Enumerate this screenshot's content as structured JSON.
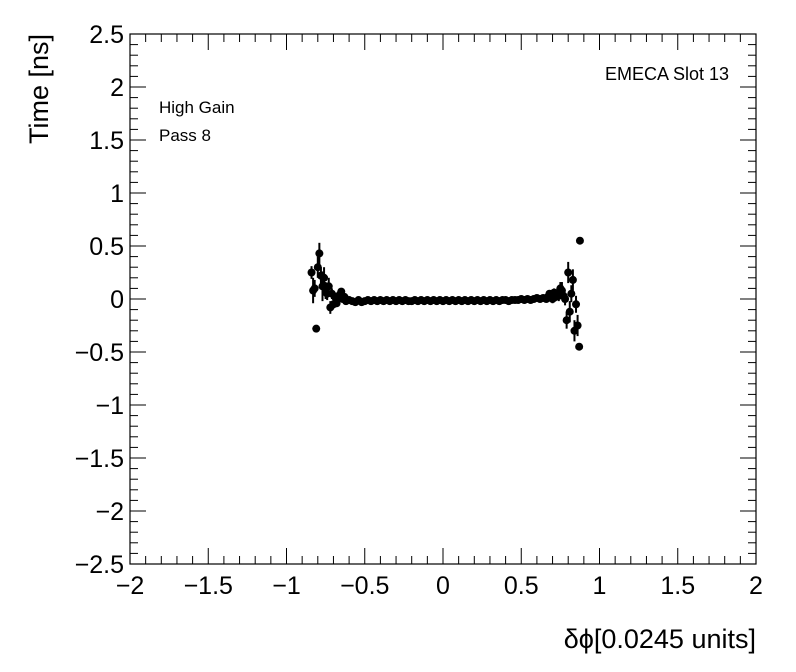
{
  "chart_data": {
    "type": "scatter",
    "title": "",
    "xlabel": "δϕ[0.0245 units]",
    "ylabel": "Time [ns]",
    "xlim": [
      -2,
      2
    ],
    "ylim": [
      -2.5,
      2.5
    ],
    "x_ticks": [
      -2,
      -1.5,
      -1,
      -0.5,
      0,
      0.5,
      1,
      1.5,
      2
    ],
    "x_tick_labels": [
      "−2",
      "−1.5",
      "−1",
      "−0.5",
      "0",
      "0.5",
      "1",
      "1.5",
      "2"
    ],
    "y_ticks": [
      -2.5,
      -2,
      -1.5,
      -1,
      -0.5,
      0,
      0.5,
      1,
      1.5,
      2,
      2.5
    ],
    "y_tick_labels": [
      "−2.5",
      "−2",
      "−1.5",
      "−1",
      "−0.5",
      "0",
      "0.5",
      "1",
      "1.5",
      "2",
      "2.5"
    ],
    "grid": false,
    "legend": "none",
    "marker_color": "#000000",
    "annotations": {
      "left_line1": "High Gain",
      "left_line2": "Pass 8",
      "right": "EMECA Slot 13"
    },
    "series": [
      {
        "points": [
          {
            "x": -0.84,
            "y": 0.25,
            "err": 0.06
          },
          {
            "x": -0.83,
            "y": 0.08,
            "err": 0.12
          },
          {
            "x": -0.82,
            "y": 0.1,
            "err": 0.08
          },
          {
            "x": -0.81,
            "y": -0.28,
            "err": 0.03
          },
          {
            "x": -0.8,
            "y": 0.3,
            "err": 0.1
          },
          {
            "x": -0.79,
            "y": 0.43,
            "err": 0.1
          },
          {
            "x": -0.78,
            "y": 0.22,
            "err": 0.08
          },
          {
            "x": -0.77,
            "y": 0.12,
            "err": 0.14
          },
          {
            "x": -0.76,
            "y": 0.2,
            "err": 0.1
          },
          {
            "x": -0.75,
            "y": 0.08,
            "err": 0.08
          },
          {
            "x": -0.74,
            "y": 0.05,
            "err": 0.06
          },
          {
            "x": -0.73,
            "y": 0.12,
            "err": 0.08
          },
          {
            "x": -0.72,
            "y": -0.08,
            "err": 0.06
          },
          {
            "x": -0.71,
            "y": 0.05,
            "err": 0.05
          },
          {
            "x": -0.7,
            "y": -0.05,
            "err": 0.04
          },
          {
            "x": -0.69,
            "y": 0.02,
            "err": 0.04
          },
          {
            "x": -0.68,
            "y": -0.04,
            "err": 0.03
          },
          {
            "x": -0.67,
            "y": 0.0,
            "err": 0.03
          },
          {
            "x": -0.66,
            "y": 0.04,
            "err": 0.03
          },
          {
            "x": -0.65,
            "y": 0.07,
            "err": 0.03
          },
          {
            "x": -0.64,
            "y": 0.0,
            "err": 0.02
          },
          {
            "x": -0.63,
            "y": 0.02,
            "err": 0.02
          },
          {
            "x": -0.62,
            "y": -0.02,
            "err": 0.02
          },
          {
            "x": -0.6,
            "y": -0.01,
            "err": 0.02
          },
          {
            "x": -0.58,
            "y": -0.02,
            "err": 0.02
          },
          {
            "x": -0.56,
            "y": -0.03,
            "err": 0.02
          },
          {
            "x": -0.54,
            "y": -0.01,
            "err": 0.02
          },
          {
            "x": -0.52,
            "y": -0.03,
            "err": 0.02
          },
          {
            "x": -0.5,
            "y": -0.02,
            "err": 0.02
          },
          {
            "x": -0.48,
            "y": -0.01,
            "err": 0.02
          },
          {
            "x": -0.46,
            "y": -0.02,
            "err": 0.02
          },
          {
            "x": -0.44,
            "y": -0.01,
            "err": 0.02
          },
          {
            "x": -0.42,
            "y": -0.02,
            "err": 0.02
          },
          {
            "x": -0.4,
            "y": -0.01,
            "err": 0.02
          },
          {
            "x": -0.38,
            "y": -0.02,
            "err": 0.02
          },
          {
            "x": -0.36,
            "y": -0.01,
            "err": 0.02
          },
          {
            "x": -0.34,
            "y": -0.02,
            "err": 0.02
          },
          {
            "x": -0.32,
            "y": -0.01,
            "err": 0.02
          },
          {
            "x": -0.3,
            "y": -0.02,
            "err": 0.02
          },
          {
            "x": -0.28,
            "y": -0.01,
            "err": 0.02
          },
          {
            "x": -0.26,
            "y": -0.02,
            "err": 0.02
          },
          {
            "x": -0.24,
            "y": -0.01,
            "err": 0.02
          },
          {
            "x": -0.22,
            "y": -0.02,
            "err": 0.02
          },
          {
            "x": -0.2,
            "y": -0.02,
            "err": 0.02
          },
          {
            "x": -0.18,
            "y": -0.01,
            "err": 0.02
          },
          {
            "x": -0.16,
            "y": -0.02,
            "err": 0.02
          },
          {
            "x": -0.14,
            "y": -0.01,
            "err": 0.02
          },
          {
            "x": -0.12,
            "y": -0.02,
            "err": 0.02
          },
          {
            "x": -0.1,
            "y": -0.01,
            "err": 0.02
          },
          {
            "x": -0.08,
            "y": -0.02,
            "err": 0.02
          },
          {
            "x": -0.06,
            "y": -0.01,
            "err": 0.02
          },
          {
            "x": -0.04,
            "y": -0.02,
            "err": 0.02
          },
          {
            "x": -0.02,
            "y": -0.01,
            "err": 0.02
          },
          {
            "x": 0.0,
            "y": -0.02,
            "err": 0.02
          },
          {
            "x": 0.02,
            "y": -0.01,
            "err": 0.02
          },
          {
            "x": 0.04,
            "y": -0.02,
            "err": 0.02
          },
          {
            "x": 0.06,
            "y": -0.01,
            "err": 0.02
          },
          {
            "x": 0.08,
            "y": -0.02,
            "err": 0.02
          },
          {
            "x": 0.1,
            "y": -0.01,
            "err": 0.02
          },
          {
            "x": 0.12,
            "y": -0.02,
            "err": 0.02
          },
          {
            "x": 0.14,
            "y": -0.01,
            "err": 0.02
          },
          {
            "x": 0.16,
            "y": -0.02,
            "err": 0.02
          },
          {
            "x": 0.18,
            "y": -0.01,
            "err": 0.02
          },
          {
            "x": 0.2,
            "y": -0.02,
            "err": 0.02
          },
          {
            "x": 0.22,
            "y": -0.01,
            "err": 0.02
          },
          {
            "x": 0.24,
            "y": -0.02,
            "err": 0.02
          },
          {
            "x": 0.26,
            "y": -0.01,
            "err": 0.02
          },
          {
            "x": 0.28,
            "y": -0.02,
            "err": 0.02
          },
          {
            "x": 0.3,
            "y": -0.01,
            "err": 0.02
          },
          {
            "x": 0.32,
            "y": -0.02,
            "err": 0.02
          },
          {
            "x": 0.34,
            "y": -0.01,
            "err": 0.02
          },
          {
            "x": 0.36,
            "y": -0.02,
            "err": 0.02
          },
          {
            "x": 0.38,
            "y": -0.01,
            "err": 0.02
          },
          {
            "x": 0.4,
            "y": -0.01,
            "err": 0.02
          },
          {
            "x": 0.42,
            "y": -0.02,
            "err": 0.02
          },
          {
            "x": 0.44,
            "y": -0.01,
            "err": 0.02
          },
          {
            "x": 0.46,
            "y": -0.01,
            "err": 0.02
          },
          {
            "x": 0.48,
            "y": -0.01,
            "err": 0.02
          },
          {
            "x": 0.5,
            "y": 0.0,
            "err": 0.02
          },
          {
            "x": 0.52,
            "y": -0.01,
            "err": 0.02
          },
          {
            "x": 0.54,
            "y": 0.0,
            "err": 0.02
          },
          {
            "x": 0.56,
            "y": -0.01,
            "err": 0.02
          },
          {
            "x": 0.58,
            "y": 0.0,
            "err": 0.02
          },
          {
            "x": 0.6,
            "y": 0.01,
            "err": 0.02
          },
          {
            "x": 0.62,
            "y": 0.0,
            "err": 0.02
          },
          {
            "x": 0.64,
            "y": 0.01,
            "err": 0.03
          },
          {
            "x": 0.66,
            "y": 0.0,
            "err": 0.03
          },
          {
            "x": 0.67,
            "y": 0.02,
            "err": 0.03
          },
          {
            "x": 0.68,
            "y": 0.05,
            "err": 0.03
          },
          {
            "x": 0.69,
            "y": 0.03,
            "err": 0.03
          },
          {
            "x": 0.7,
            "y": 0.0,
            "err": 0.04
          },
          {
            "x": 0.71,
            "y": 0.06,
            "err": 0.04
          },
          {
            "x": 0.72,
            "y": 0.02,
            "err": 0.04
          },
          {
            "x": 0.73,
            "y": 0.05,
            "err": 0.05
          },
          {
            "x": 0.74,
            "y": 0.03,
            "err": 0.05
          },
          {
            "x": 0.75,
            "y": 0.1,
            "err": 0.06
          },
          {
            "x": 0.76,
            "y": 0.08,
            "err": 0.08
          },
          {
            "x": 0.77,
            "y": 0.03,
            "err": 0.06
          },
          {
            "x": 0.78,
            "y": 0.0,
            "err": 0.06
          },
          {
            "x": 0.79,
            "y": -0.2,
            "err": 0.08
          },
          {
            "x": 0.8,
            "y": 0.25,
            "err": 0.1
          },
          {
            "x": 0.81,
            "y": -0.12,
            "err": 0.1
          },
          {
            "x": 0.82,
            "y": 0.05,
            "err": 0.08
          },
          {
            "x": 0.83,
            "y": 0.18,
            "err": 0.1
          },
          {
            "x": 0.84,
            "y": -0.3,
            "err": 0.1
          },
          {
            "x": 0.85,
            "y": -0.05,
            "err": 0.08
          },
          {
            "x": 0.86,
            "y": -0.25,
            "err": 0.1
          },
          {
            "x": 0.87,
            "y": -0.45,
            "err": 0.03
          },
          {
            "x": 0.875,
            "y": 0.55,
            "err": 0.02
          }
        ]
      }
    ]
  }
}
